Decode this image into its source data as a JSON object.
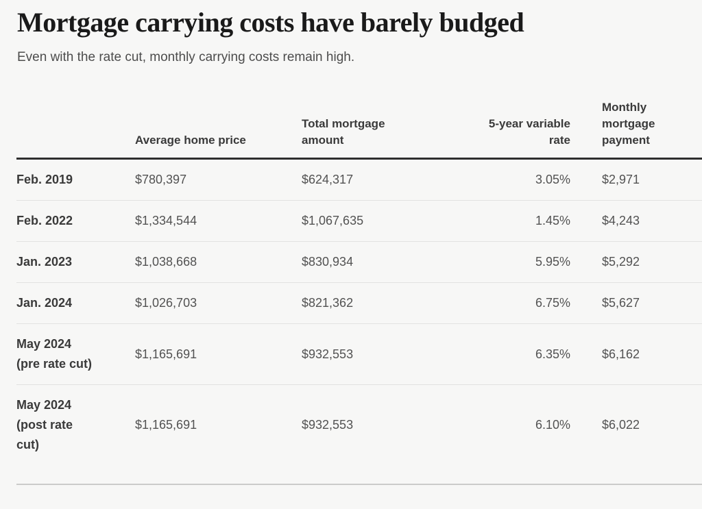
{
  "header": {
    "title": "Mortgage carrying costs have barely budged",
    "subtitle": "Even with the rate cut, monthly carrying costs remain high."
  },
  "chart_data": {
    "type": "table",
    "title": "Mortgage carrying costs have barely budged",
    "subtitle": "Even with the rate cut, monthly carrying costs remain high.",
    "columns": [
      "Average home price",
      "Total mortgage amount",
      "5-year variable rate",
      "Monthly mortgage payment"
    ],
    "rows": [
      {
        "label": "Feb. 2019",
        "values": [
          "$780,397",
          "$624,317",
          "3.05%",
          "$2,971"
        ]
      },
      {
        "label": "Feb. 2022",
        "values": [
          "$1,334,544",
          "$1,067,635",
          "1.45%",
          "$4,243"
        ]
      },
      {
        "label": "Jan. 2023",
        "values": [
          "$1,038,668",
          "$830,934",
          "5.95%",
          "$5,292"
        ]
      },
      {
        "label": "Jan. 2024",
        "values": [
          "$1,026,703",
          "$821,362",
          "6.75%",
          "$5,627"
        ]
      },
      {
        "label": "May 2024 (pre rate cut)",
        "values": [
          "$1,165,691",
          "$932,553",
          "6.35%",
          "$6,162"
        ]
      },
      {
        "label": "May 2024 (post rate cut)",
        "values": [
          "$1,165,691",
          "$932,553",
          "6.10%",
          "$6,022"
        ]
      }
    ],
    "numeric": {
      "average_home_price": [
        780397,
        1334544,
        1038668,
        1026703,
        1165691,
        1165691
      ],
      "total_mortgage_amount": [
        624317,
        1067635,
        830934,
        821362,
        932553,
        932553
      ],
      "five_year_variable_rate_pct": [
        3.05,
        1.45,
        5.95,
        6.75,
        6.35,
        6.1
      ],
      "monthly_mortgage_payment": [
        2971,
        4243,
        5292,
        5627,
        6162,
        6022
      ]
    },
    "layout": {
      "grid": "off",
      "legend": "none"
    }
  },
  "colors": {
    "background": "#f7f7f6",
    "title_text": "#1a1a1a",
    "subtitle_text": "#4c4c4c",
    "header_text": "#3a3a3a",
    "row_label_text": "#3a3a3a",
    "value_text": "#525252",
    "header_rule": "#2e2e2e",
    "row_separator": "#e2e2e1",
    "bottom_rule": "#cbcbca"
  }
}
